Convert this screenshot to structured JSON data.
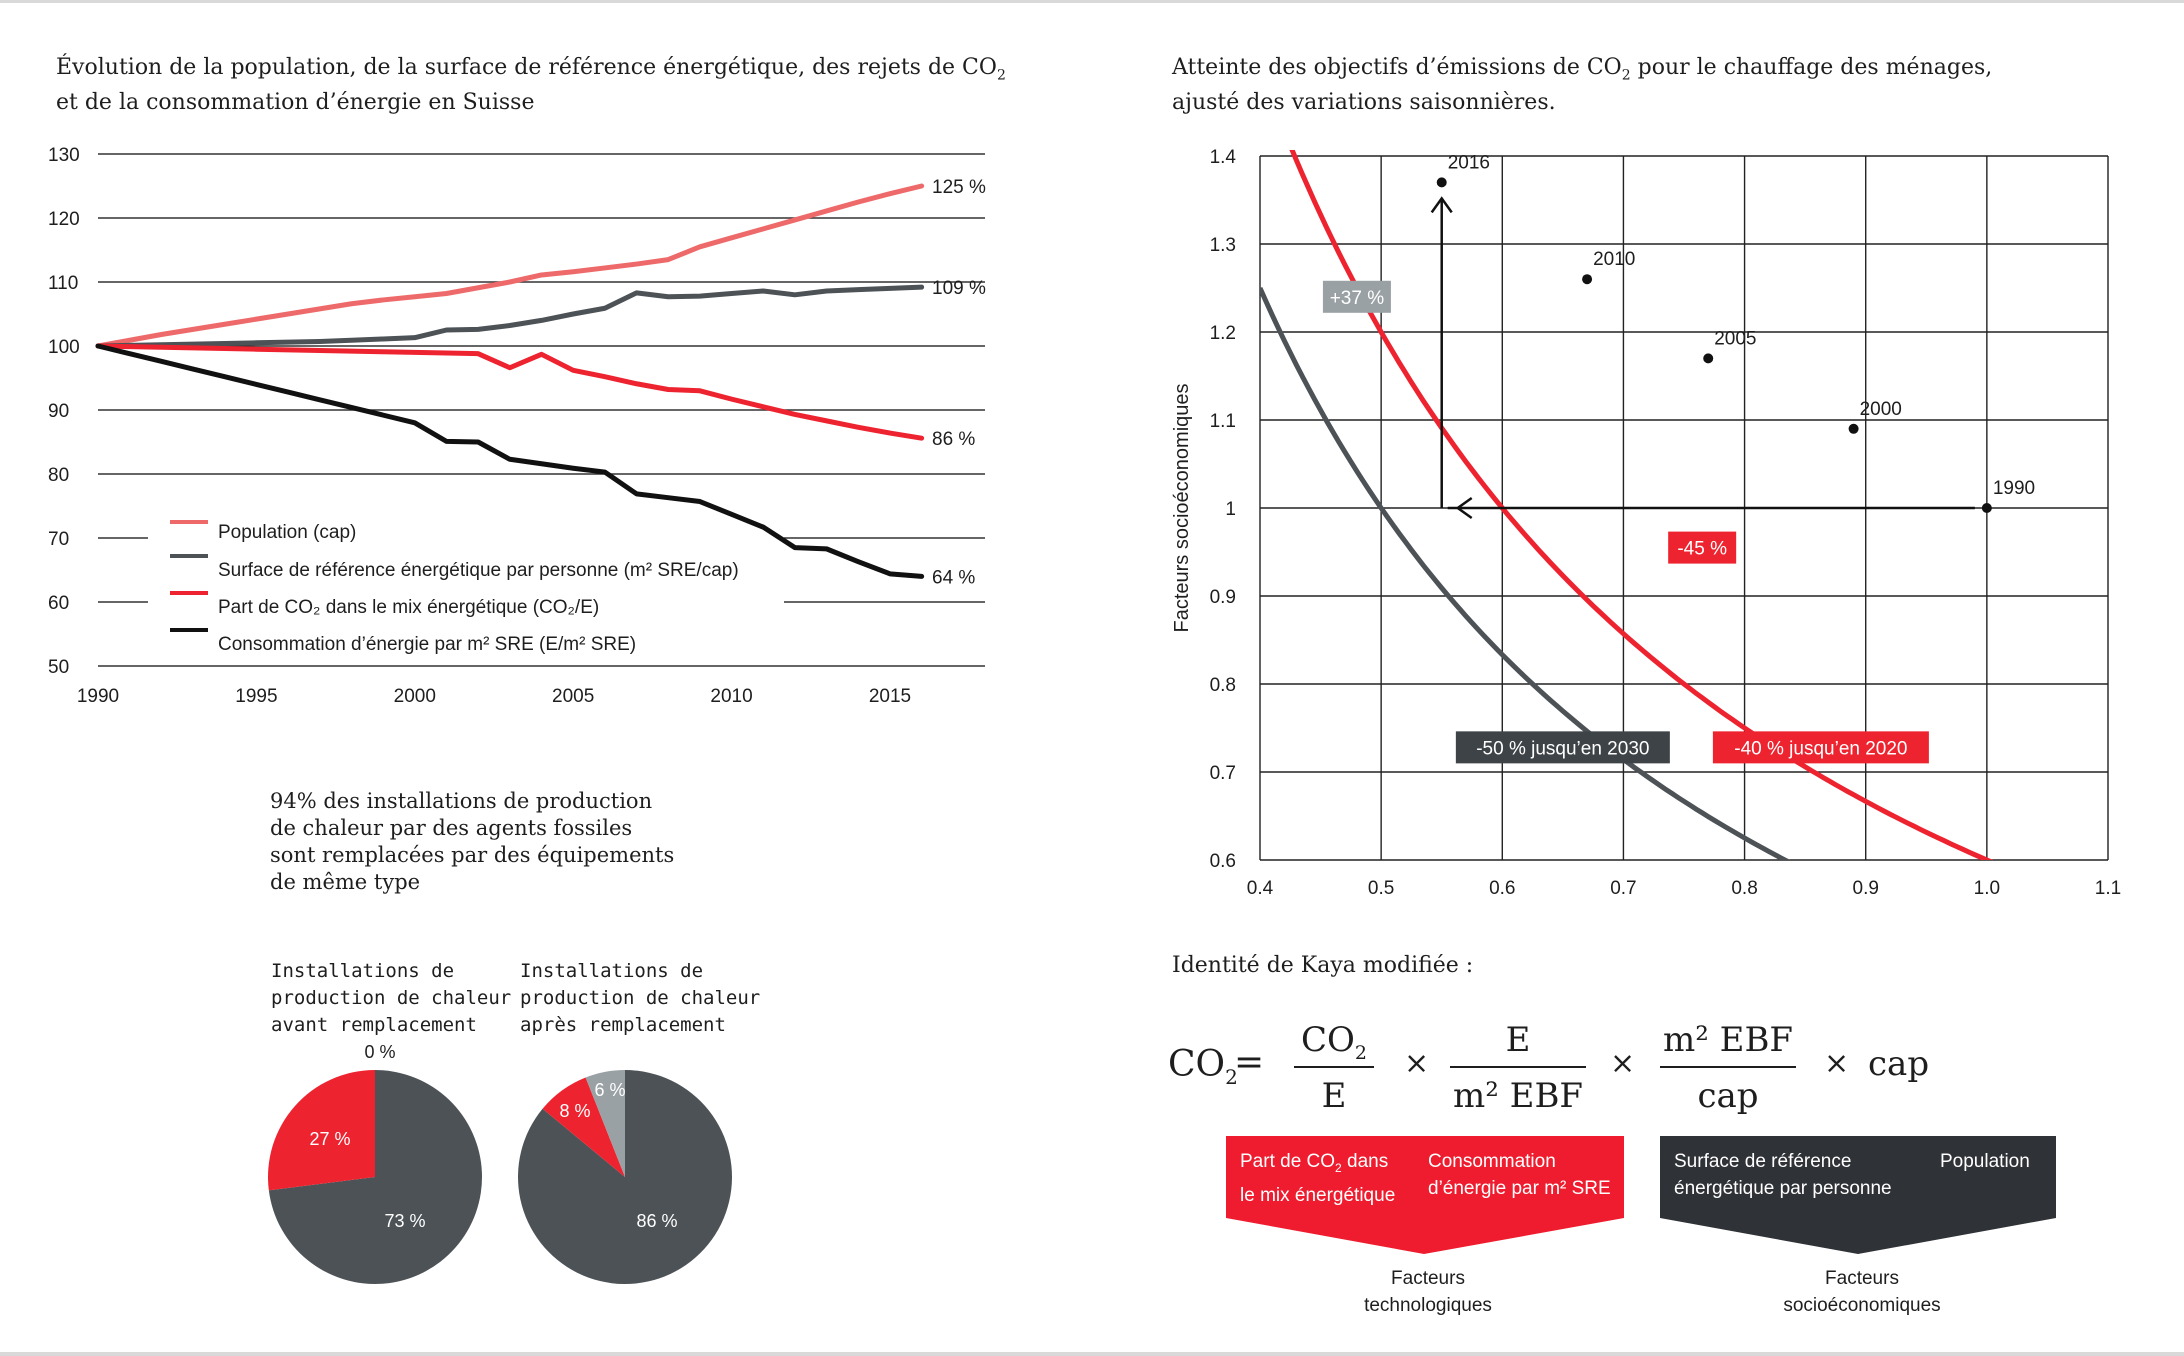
{
  "colors": {
    "population": "#ee6a6a",
    "sre": "#4d5256",
    "co2mix": "#ee2330",
    "energy": "#111111",
    "dark_label": "#3e4347",
    "red_label": "#ee2330",
    "gray_label": "#9aa1a4",
    "kaya_red": "#ee1c2e",
    "kaya_dark": "#2f3236"
  },
  "chart1": {
    "title_line1": "Évolution de la population, de la surface de référence énergétique, des rejets de CO",
    "title_sub": "2",
    "title_line2": "et de la consommation d’énergie en Suisse"
  },
  "chart2": {
    "title_line1a": "Atteinte des objectifs d’émissions de CO",
    "title_sub": "2",
    "title_line1b": " pour le chauffage des ménages,",
    "title_line2": "ajusté des variations saisonnières."
  },
  "pies": {
    "title_lines": [
      "94% des installations de production",
      "de chaleur par des agents fossiles",
      "sont remplacées par des équipements",
      "de même type"
    ],
    "before_caption": [
      "Installations de",
      "production de chaleur",
      "avant remplacement"
    ],
    "after_caption": [
      "Installations de",
      "production de chaleur",
      "après remplacement"
    ]
  },
  "kaya": {
    "title": "Identité de Kaya modifiée :",
    "co2": "CO",
    "sub2": "2",
    "eq": "=",
    "times": "×",
    "f1_num": "CO",
    "f1_den": "E",
    "f2_num": "E",
    "f2_den": "m² EBF",
    "f3_num": "m² EBF",
    "f3_den": "cap",
    "f4": "cap",
    "box_red_left_a": "Part de CO",
    "box_red_left_b": " dans",
    "box_red_left_line2": "le mix énergétique",
    "box_red_right_line1": "Consommation",
    "box_red_right_line2": "d’énergie par m² SRE",
    "box_dark_left_line1": "Surface de référence",
    "box_dark_left_line2": "énergétique par personne",
    "box_dark_right": "Population",
    "group_red_line1": "Facteurs",
    "group_red_line2": "technologiques",
    "group_dark_line1": "Facteurs",
    "group_dark_line2": "socioéconomiques"
  },
  "chart_data": [
    {
      "type": "line",
      "x": [
        1990,
        1991,
        1992,
        1993,
        1994,
        1995,
        1996,
        1997,
        1998,
        1999,
        2000,
        2001,
        2002,
        2003,
        2004,
        2005,
        2006,
        2007,
        2008,
        2009,
        2010,
        2011,
        2012,
        2013,
        2014,
        2015,
        2016
      ],
      "xticks": [
        1990,
        1995,
        2000,
        2005,
        2010,
        2015
      ],
      "yticks": [
        50,
        60,
        70,
        80,
        90,
        100,
        110,
        120,
        130
      ],
      "ylim": [
        50,
        130
      ],
      "xlim": [
        1990,
        2018
      ],
      "grid": "horizontal",
      "series": [
        {
          "name": "Population (cap)",
          "color_key": "population",
          "end_label": "125 %",
          "values": [
            100,
            100.9,
            101.8,
            102.6,
            103.4,
            104.2,
            105,
            105.8,
            106.6,
            107.2,
            107.7,
            108.2,
            109.1,
            110,
            111.1,
            111.6,
            112.2,
            112.8,
            113.5,
            115.5,
            116.9,
            118.3,
            119.7,
            121.1,
            122.5,
            123.8,
            125
          ]
        },
        {
          "name": "Surface de référence énergétique par personne (m² SRE/cap)",
          "color_key": "sre",
          "end_label": "109 %",
          "values": [
            100,
            100.1,
            100.2,
            100.3,
            100.4,
            100.5,
            100.6,
            100.7,
            100.9,
            101.1,
            101.3,
            102.5,
            102.6,
            103.2,
            104,
            105,
            105.9,
            108.3,
            107.7,
            107.8,
            108.2,
            108.6,
            108,
            108.6,
            108.8,
            109,
            109.2
          ]
        },
        {
          "name": "Part de CO₂ dans le mix énergétique (CO₂/E)",
          "color_key": "co2mix",
          "end_label": "86 %",
          "values": [
            100,
            99.9,
            99.8,
            99.7,
            99.6,
            99.5,
            99.4,
            99.3,
            99.2,
            99.1,
            99,
            98.9,
            98.8,
            96.6,
            98.7,
            96.2,
            95.2,
            94.1,
            93.2,
            93,
            91.7,
            90.5,
            89.3,
            88.3,
            87.3,
            86.4,
            85.6
          ]
        },
        {
          "name": "Consommation d’énergie par m² SRE (E/m² SRE)",
          "color_key": "energy",
          "end_label": "64 %",
          "values": [
            100,
            98.8,
            97.6,
            96.4,
            95.2,
            94,
            92.8,
            91.6,
            90.4,
            89.2,
            88,
            85.1,
            85,
            82.3,
            81.6,
            80.9,
            80.3,
            76.9,
            76.3,
            75.7,
            73.7,
            71.7,
            68.5,
            68.3,
            66.3,
            64.4,
            64
          ]
        }
      ]
    },
    {
      "type": "scatter",
      "xlabel": "",
      "ylabel": "Facteurs socioéconomiques",
      "xlim": [
        0.4,
        1.1
      ],
      "ylim": [
        0.6,
        1.4
      ],
      "xticks": [
        0.4,
        0.5,
        0.6,
        0.7,
        0.8,
        0.9,
        1.0,
        1.1
      ],
      "xtick_labels": [
        "0.4",
        "0.5",
        "0.6",
        "0.7",
        "0.8",
        "0.9",
        "1.0",
        "1.1"
      ],
      "yticks": [
        0.6,
        0.7,
        0.8,
        0.9,
        1.0,
        1.1,
        1.2,
        1.3,
        1.4
      ],
      "ytick_labels": [
        "0.6",
        "0.7",
        "0.8",
        "0.9",
        "1",
        "1.1",
        "1.2",
        "1.3",
        "1.4"
      ],
      "grid": "both",
      "points": [
        {
          "label": "1990",
          "x": 1.0,
          "y": 1.0
        },
        {
          "label": "2000",
          "x": 0.89,
          "y": 1.09
        },
        {
          "label": "2005",
          "x": 0.77,
          "y": 1.17
        },
        {
          "label": "2010",
          "x": 0.67,
          "y": 1.26
        },
        {
          "label": "2016",
          "x": 0.55,
          "y": 1.37
        }
      ],
      "curves": [
        {
          "label": "-40 % jusqu’en 2020",
          "color_key": "co2mix",
          "product": 0.6
        },
        {
          "label": "-50 % jusqu’en 2030",
          "color_key": "sre",
          "product": 0.5
        }
      ],
      "arrows": [
        {
          "label": "-45 %",
          "from": [
            1.0,
            1.0
          ],
          "to": [
            0.55,
            1.0
          ],
          "color_key": "red_label"
        },
        {
          "label": "+37 %",
          "from": [
            0.55,
            1.0
          ],
          "to": [
            0.55,
            1.37
          ],
          "color_key": "gray_label"
        }
      ]
    },
    {
      "type": "pie",
      "caption": "Installations de production de chaleur avant remplacement",
      "slices": [
        {
          "label": "73 %",
          "value": 73,
          "color_key": "sre"
        },
        {
          "label": "27 %",
          "value": 27,
          "color_key": "co2mix"
        },
        {
          "label": "0 %",
          "value": 0,
          "color_key": "gray_label"
        }
      ]
    },
    {
      "type": "pie",
      "caption": "Installations de production de chaleur après remplacement",
      "slices": [
        {
          "label": "86 %",
          "value": 86,
          "color_key": "sre"
        },
        {
          "label": "8 %",
          "value": 8,
          "color_key": "co2mix"
        },
        {
          "label": "6 %",
          "value": 6,
          "color_key": "gray_label"
        }
      ]
    }
  ]
}
